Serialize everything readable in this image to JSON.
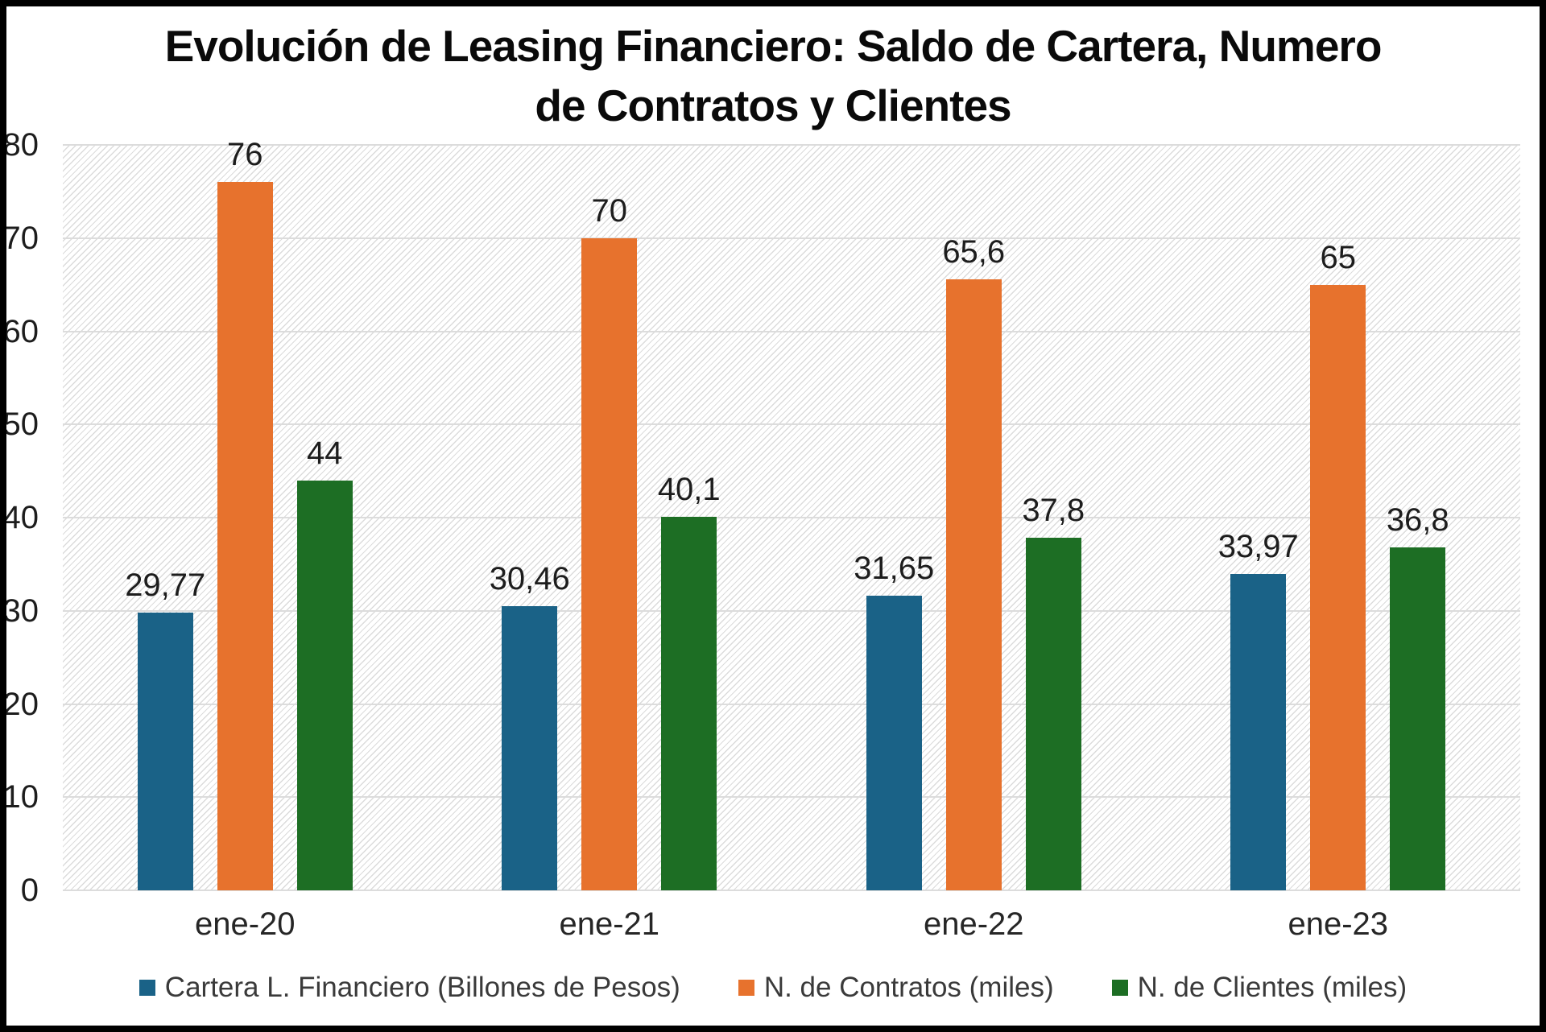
{
  "title": {
    "line1": "Evolución de Leasing Financiero: Saldo de Cartera, Numero",
    "line2": "de Contratos y Clientes"
  },
  "chart_data": {
    "type": "bar",
    "categories": [
      "ene-20",
      "ene-21",
      "ene-22",
      "ene-23"
    ],
    "series": [
      {
        "name": "Cartera L. Financiero (Billones de Pesos)",
        "color": "#1A6287",
        "values": [
          29.77,
          30.46,
          31.65,
          33.97
        ],
        "labels": [
          "29,77",
          "30,46",
          "31,65",
          "33,97"
        ]
      },
      {
        "name": "N. de Contratos (miles)",
        "color": "#E7722D",
        "values": [
          76,
          70,
          65.6,
          65
        ],
        "labels": [
          "76",
          "70",
          "65,6",
          "65"
        ]
      },
      {
        "name": "N. de Clientes (miles)",
        "color": "#1D6E24",
        "values": [
          44,
          40.1,
          37.8,
          36.8
        ],
        "labels": [
          "44",
          "40,1",
          "37,8",
          "36,8"
        ]
      }
    ],
    "y_axis": {
      "min": 0,
      "max": 80,
      "step": 10,
      "ticks": [
        "0",
        "10",
        "20",
        "30",
        "40",
        "50",
        "60",
        "70",
        "80"
      ]
    },
    "grid": true,
    "legend_position": "bottom",
    "plot_background": "light-upward-diagonal-hatch",
    "xlabel": "",
    "ylabel": ""
  },
  "colors": {
    "frame_border": "#000000",
    "background": "#ffffff",
    "gridline": "#dcdcdc",
    "hatch_line": "#b0b0b0",
    "title_text": "#0a0a0a",
    "axis_text": "#1d1d1d",
    "legend_text": "#3a3a3a"
  }
}
